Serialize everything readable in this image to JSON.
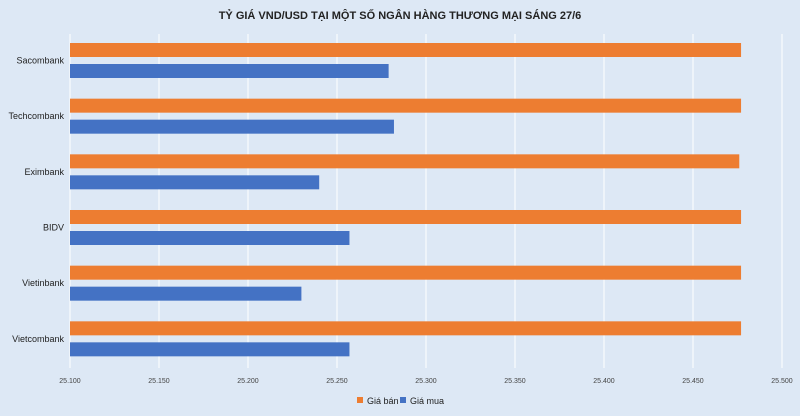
{
  "chart_data": {
    "type": "bar",
    "orientation": "horizontal",
    "title": "TỶ GIÁ VND/USD TẠI MỘT SỐ NGÂN HÀNG THƯƠNG MẠI SÁNG 27/6",
    "categories": [
      "Sacombank",
      "Techcombank",
      "Eximbank",
      "BIDV",
      "Vietinbank",
      "Vietcombank"
    ],
    "series": [
      {
        "name": "Giá bán",
        "color": "#ed7d31",
        "values": [
          25477,
          25477,
          25476,
          25477,
          25477,
          25477
        ]
      },
      {
        "name": "Giá mua",
        "color": "#4472c4",
        "values": [
          25279,
          25282,
          25240,
          25257,
          25230,
          25257
        ]
      }
    ],
    "xlim": [
      25100,
      25500
    ],
    "xticks": [
      25100,
      25150,
      25200,
      25250,
      25300,
      25350,
      25400,
      25450,
      25500
    ],
    "tick_labels": [
      "25.100",
      "25.150",
      "25.200",
      "25.250",
      "25.300",
      "25.350",
      "25.400",
      "25.450",
      "25.500"
    ],
    "grid": true,
    "legend_position": "bottom"
  }
}
